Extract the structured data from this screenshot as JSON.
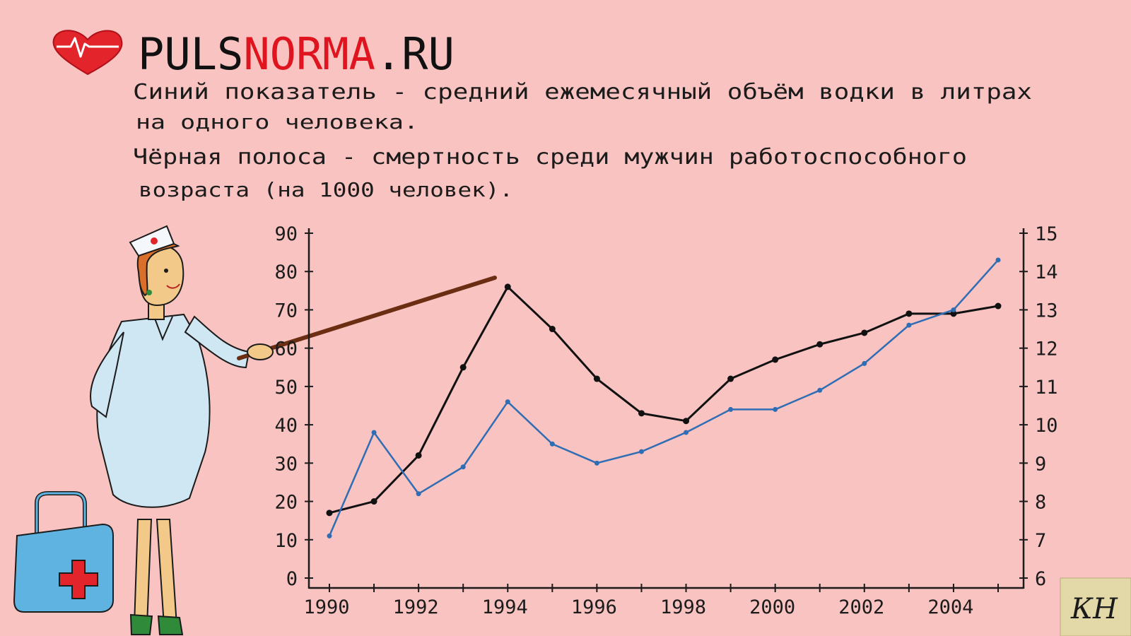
{
  "brand": {
    "part1": "PULS",
    "part2": "NORMA",
    "part3": ".RU",
    "heart_color": "#e3242b"
  },
  "caption": {
    "line1": "Синий показатель - средний ежемесячный объём водки в литрах",
    "line2": "на одного человека.",
    "line3": "Чёрная полоса - смертность среди мужчин работоспособного",
    "line4": "возраста (на 1000 человек)."
  },
  "signature": "КН",
  "chart_data": {
    "type": "line",
    "title": "",
    "x": [
      1990,
      1991,
      1992,
      1993,
      1994,
      1995,
      1996,
      1997,
      1998,
      1999,
      2000,
      2001,
      2002,
      2003,
      2004,
      2005
    ],
    "x_tick_labels": [
      "1990",
      "1992",
      "1994",
      "1996",
      "1998",
      "2000",
      "2002",
      "2004"
    ],
    "y_left": {
      "ylim": [
        0,
        90
      ],
      "ticks": [
        "0",
        "10",
        "20",
        "30",
        "40",
        "50",
        "60",
        "70",
        "80",
        "90"
      ]
    },
    "y_right": {
      "ylim": [
        6,
        15
      ],
      "ticks": [
        "6",
        "7",
        "8",
        "9",
        "10",
        "11",
        "12",
        "13",
        "14",
        "15"
      ]
    },
    "series": [
      {
        "axis": "left",
        "color": "#111111",
        "values": [
          17,
          20,
          32,
          55,
          76,
          65,
          52,
          43,
          41,
          52,
          57,
          61,
          64,
          69,
          69,
          71
        ]
      },
      {
        "axis": "right",
        "color": "#2f6db5",
        "values": [
          7.1,
          9.8,
          8.2,
          8.9,
          10.6,
          9.5,
          9.0,
          9.3,
          9.8,
          10.4,
          10.4,
          10.9,
          11.6,
          12.6,
          13.0,
          14.3
        ]
      }
    ],
    "grid": false,
    "legend": "none"
  }
}
